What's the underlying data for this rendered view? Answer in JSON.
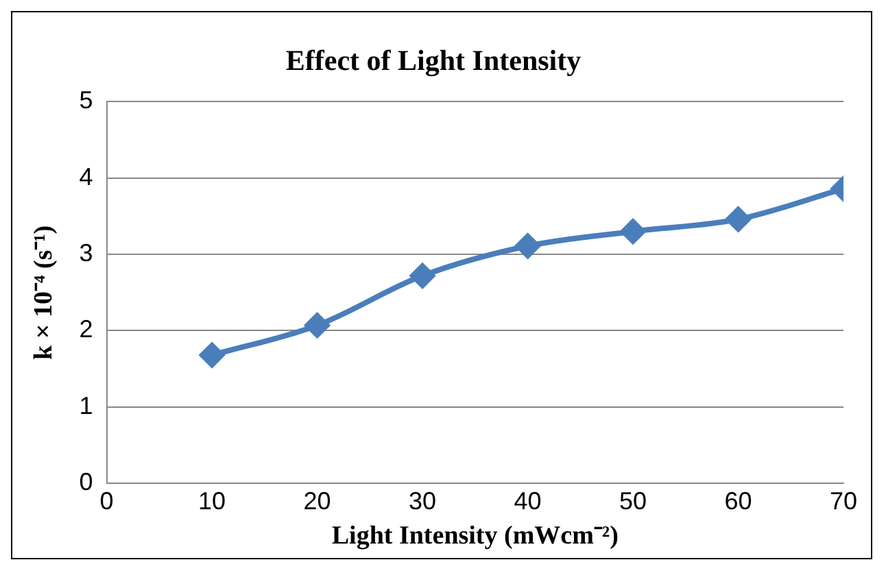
{
  "chart_data": {
    "type": "line",
    "title": "Effect of Light Intensity",
    "xlabel": "Light Intensity (mWcm⁻²)",
    "ylabel": "k × 10⁻⁴ (s⁻¹)",
    "x": [
      10,
      20,
      30,
      40,
      50,
      60,
      70
    ],
    "series": [
      {
        "color": "#4a7ebb",
        "values": [
          1.68,
          2.07,
          2.72,
          3.11,
          3.3,
          3.46,
          3.86
        ]
      }
    ],
    "xlim": [
      0,
      70
    ],
    "xticks": [
      0,
      10,
      20,
      30,
      40,
      50,
      60,
      70
    ],
    "ylim": [
      0,
      5
    ],
    "yticks": [
      0,
      1,
      2,
      3,
      4,
      5
    ],
    "grid": "y",
    "legend": false,
    "marker": "diamond",
    "line_style": "solid"
  }
}
